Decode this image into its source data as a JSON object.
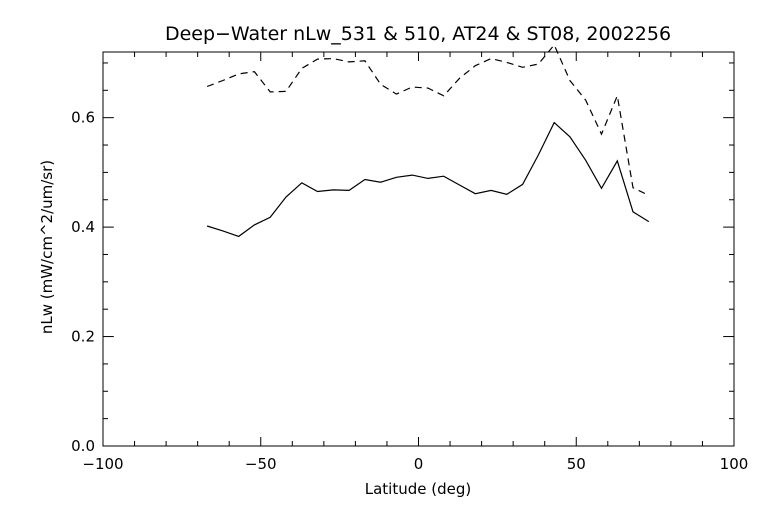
{
  "chart_data": {
    "type": "line",
    "title": "Deep−Water nLw_531 & 510, AT24 & ST08, 2002256",
    "xlabel": "Latitude (deg)",
    "ylabel": "nLw (mW/cm^2/um/sr)",
    "xlim": [
      -100,
      100
    ],
    "ylim": [
      0.0,
      0.72
    ],
    "xticks": [
      -100,
      -50,
      0,
      50,
      100
    ],
    "xtick_labels": [
      "−100",
      "−50",
      "0",
      "50",
      "100"
    ],
    "yticks": [
      0.0,
      0.2,
      0.4,
      0.6
    ],
    "ytick_labels": [
      "0.0",
      "0.2",
      "0.4",
      "0.6"
    ],
    "x_minor_step": 10,
    "y_minor_step": 0.05,
    "grid": false,
    "series": [
      {
        "style": "solid",
        "color": "#000000",
        "x": [
          -67,
          -62,
          -57,
          -52,
          -47,
          -42,
          -37,
          -32,
          -27,
          -22,
          -17,
          -12,
          -7,
          -2,
          3,
          8,
          13,
          18,
          23,
          28,
          33,
          38,
          43,
          48,
          53,
          58,
          63,
          68,
          73
        ],
        "y": [
          0.402,
          0.393,
          0.383,
          0.404,
          0.418,
          0.455,
          0.481,
          0.465,
          0.468,
          0.467,
          0.487,
          0.482,
          0.491,
          0.495,
          0.489,
          0.493,
          0.477,
          0.461,
          0.467,
          0.46,
          0.478,
          0.532,
          0.591,
          0.565,
          0.522,
          0.471,
          0.521,
          0.428,
          0.41
        ]
      },
      {
        "style": "dashed",
        "color": "#000000",
        "x": [
          -67,
          -62,
          -57,
          -52,
          -47,
          -42,
          -37,
          -32,
          -27,
          -22,
          -17,
          -12,
          -7,
          -2,
          3,
          8,
          13,
          18,
          23,
          28,
          33,
          38,
          43,
          48,
          53,
          58,
          63,
          68,
          73
        ],
        "y": [
          0.657,
          0.668,
          0.68,
          0.684,
          0.647,
          0.648,
          0.69,
          0.707,
          0.708,
          0.702,
          0.704,
          0.661,
          0.643,
          0.656,
          0.654,
          0.64,
          0.672,
          0.695,
          0.708,
          0.701,
          0.692,
          0.698,
          0.733,
          0.668,
          0.632,
          0.57,
          0.64,
          0.472,
          0.458
        ]
      }
    ]
  }
}
